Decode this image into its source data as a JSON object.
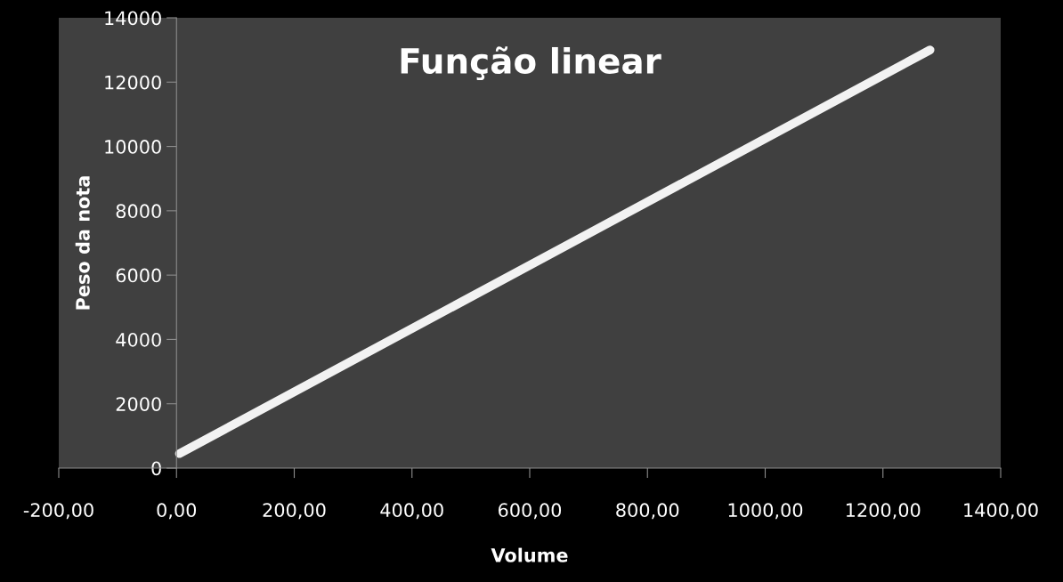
{
  "chart_data": {
    "type": "line",
    "title": "Função linear",
    "xlabel": "Volume",
    "ylabel": "Peso da nota",
    "x": [
      5,
      1280
    ],
    "series": [
      {
        "color": "#f2f2f2",
        "values": [
          450,
          13000
        ]
      }
    ],
    "xlim": [
      -200,
      1400
    ],
    "xticks": [
      {
        "value": -200,
        "label": "-200,00"
      },
      {
        "value": 0,
        "label": "0,00"
      },
      {
        "value": 200,
        "label": "200,00"
      },
      {
        "value": 400,
        "label": "400,00"
      },
      {
        "value": 600,
        "label": "600,00"
      },
      {
        "value": 800,
        "label": "800,00"
      },
      {
        "value": 1000,
        "label": "1000,00"
      },
      {
        "value": 1200,
        "label": "1200,00"
      },
      {
        "value": 1400,
        "label": "1400,00"
      }
    ],
    "ylim": [
      0,
      14000
    ],
    "yticks": [
      0,
      2000,
      4000,
      6000,
      8000,
      10000,
      12000,
      14000
    ],
    "grid": false,
    "marker": "none",
    "line_style": "solid"
  }
}
